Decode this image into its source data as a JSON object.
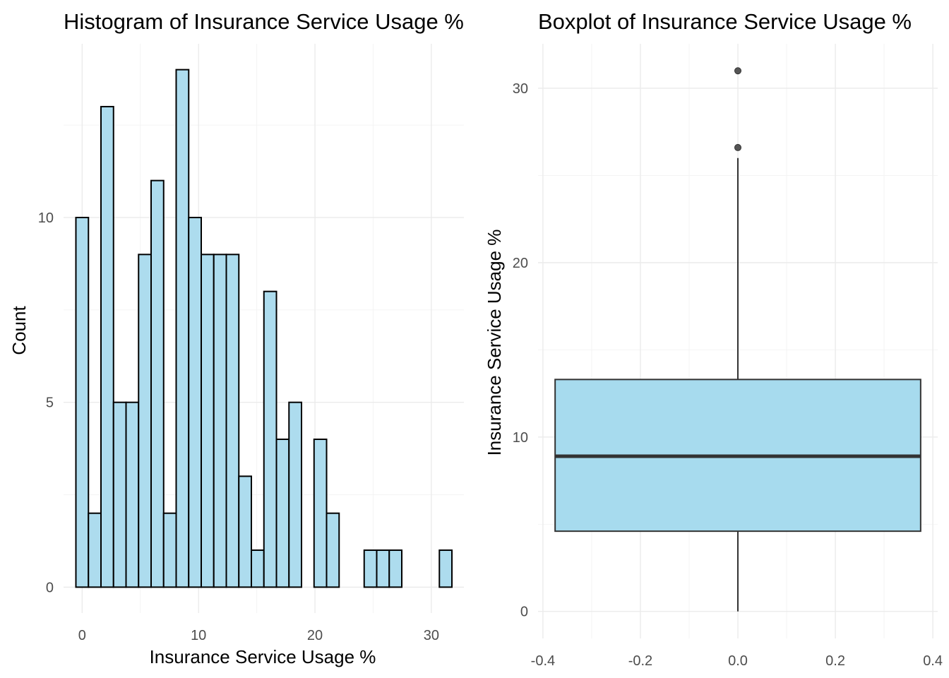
{
  "chart_data": [
    {
      "type": "bar",
      "subtype": "histogram",
      "title": "Histogram of Insurance Service Usage %",
      "xlabel": "Insurance Service Usage %",
      "ylabel": "Count",
      "bin_width": 1.077,
      "bin_centers": [
        0,
        1.077,
        2.154,
        3.231,
        4.308,
        5.385,
        6.462,
        7.538,
        8.615,
        9.692,
        10.769,
        11.846,
        12.923,
        14.0,
        15.077,
        16.154,
        17.231,
        18.308,
        19.385,
        20.462,
        21.538,
        22.615,
        23.692,
        24.769,
        25.846,
        26.923,
        28.0,
        29.077,
        30.154,
        31.231
      ],
      "values": [
        10,
        2,
        13,
        5,
        5,
        9,
        11,
        2,
        14,
        10,
        9,
        9,
        9,
        3,
        1,
        8,
        4,
        5,
        0,
        4,
        2,
        0,
        0,
        1,
        1,
        1,
        0,
        0,
        0,
        1
      ],
      "xlim": [
        -1.6,
        32.8
      ],
      "ylim": [
        -0.7,
        14.7
      ],
      "x_ticks": [
        0,
        10,
        20,
        30
      ],
      "y_ticks": [
        0,
        5,
        10
      ],
      "fill_color": "#ADDCEE",
      "edge_color": "#000000",
      "grid": true
    },
    {
      "type": "boxplot",
      "title": "Boxplot of Insurance Service Usage %",
      "ylabel": "Insurance Service Usage %",
      "xlabel": "",
      "x_center": 0.0,
      "box_halfwidth": 0.375,
      "q1": 4.6,
      "median": 8.9,
      "q3": 13.3,
      "whisker_low": 0.0,
      "whisker_high": 26.0,
      "outliers": [
        26.6,
        31.0
      ],
      "xlim": [
        -0.41,
        0.41
      ],
      "ylim": [
        -1.55,
        32.55
      ],
      "x_ticks": [
        -0.4,
        -0.2,
        0.0,
        0.2,
        0.4
      ],
      "x_tick_labels": [
        "-0.4",
        "-0.2",
        "0.0",
        "0.2",
        "0.4"
      ],
      "y_ticks": [
        0,
        10,
        20,
        30
      ],
      "fill_color": "#A7DBEE",
      "edge_color": "#333333",
      "grid": true
    }
  ]
}
